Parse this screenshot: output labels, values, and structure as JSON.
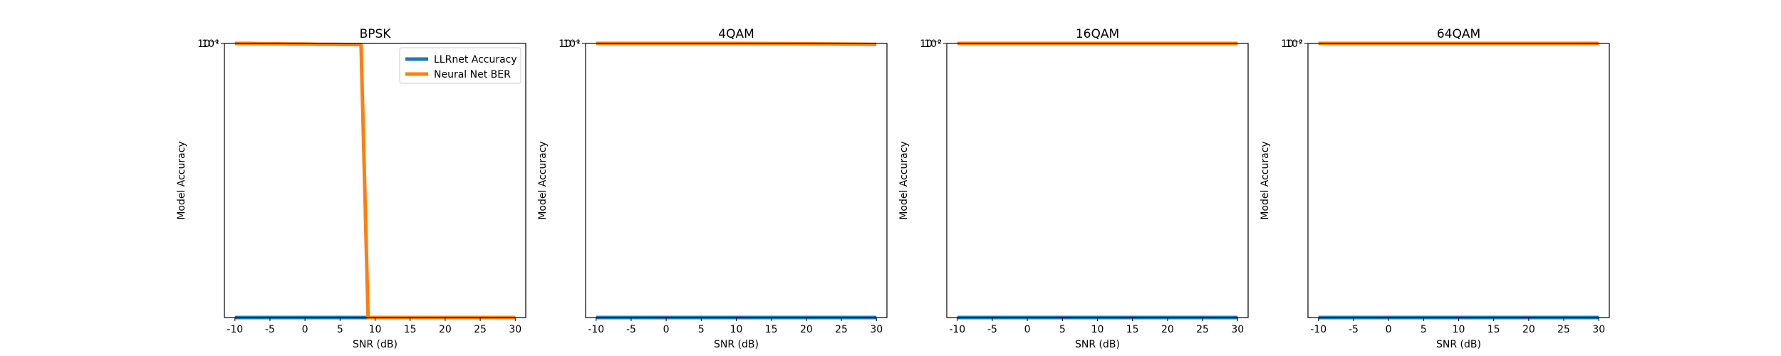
{
  "figure": {
    "charts": [
      {
        "title": "BPSK"
      },
      {
        "title": "4QAM"
      },
      {
        "title": "16QAM"
      },
      {
        "title": "64QAM"
      }
    ]
  },
  "chart_data": [
    {
      "type": "line",
      "title": "BPSK",
      "xlabel": "SNR (dB)",
      "ylabel": "Model Accuracy",
      "xlim": [
        -11.5,
        31.5
      ],
      "xticks": [
        -10,
        -5,
        0,
        5,
        10,
        15,
        20,
        25,
        30
      ],
      "ytick_labels": [
        "10°",
        "10⁻¹"
      ],
      "y_scale": "log",
      "legend_position": "top-right",
      "grid": false,
      "series": [
        {
          "name": "LLRnet Accuracy",
          "color": "#1f77b4",
          "x": [
            -10,
            -8,
            -6,
            -4,
            -2,
            0,
            2,
            4,
            6,
            8,
            9,
            10,
            12,
            14,
            16,
            18,
            20,
            22,
            24,
            26,
            28,
            30
          ],
          "y": [
            0.0,
            0.0,
            0.0,
            0.0,
            0.0,
            0.0,
            0.0,
            0.0,
            0.0,
            0.0,
            0.0,
            0.0,
            0.0,
            0.0,
            0.0,
            0.0,
            0.0,
            0.0,
            0.0,
            0.0,
            0.0,
            0.0
          ]
        },
        {
          "name": "Neural Net BER",
          "color": "#ff7f0e",
          "x": [
            -10,
            -8,
            -6,
            -4,
            -2,
            0,
            2,
            4,
            6,
            8,
            9,
            10,
            12,
            14,
            16,
            18,
            20,
            22,
            24,
            26,
            28,
            30
          ],
          "y": [
            1.0,
            1.0,
            0.999,
            0.999,
            0.998,
            0.998,
            0.997,
            0.997,
            0.996,
            0.996,
            0.0,
            0.0,
            0.0,
            0.0,
            0.0,
            0.0,
            0.0,
            0.0,
            0.0,
            0.0,
            0.0,
            0.0
          ]
        }
      ]
    },
    {
      "type": "line",
      "title": "4QAM",
      "xlabel": "SNR (dB)",
      "ylabel": "Model Accuracy",
      "xlim": [
        -11.5,
        31.5
      ],
      "xticks": [
        -10,
        -5,
        0,
        5,
        10,
        15,
        20,
        25,
        30
      ],
      "ytick_labels": [
        "10°",
        "10⁻¹"
      ],
      "y_scale": "log",
      "grid": false,
      "series": [
        {
          "name": "LLRnet Accuracy",
          "color": "#1f77b4",
          "x": [
            -10,
            0,
            10,
            20,
            30
          ],
          "y": [
            0.0,
            0.0,
            0.0,
            0.0,
            0.0
          ]
        },
        {
          "name": "Neural Net BER",
          "color": "#ff7f0e",
          "x": [
            -10,
            0,
            10,
            20,
            30
          ],
          "y": [
            1.0,
            1.0,
            1.0,
            0.999,
            0.997
          ]
        }
      ]
    },
    {
      "type": "line",
      "title": "16QAM",
      "xlabel": "SNR (dB)",
      "ylabel": "Model Accuracy",
      "xlim": [
        -11.5,
        31.5
      ],
      "xticks": [
        -10,
        -5,
        0,
        5,
        10,
        15,
        20,
        25,
        30
      ],
      "ytick_labels": [
        "10°",
        "10⁻²"
      ],
      "y_scale": "log",
      "grid": false,
      "series": [
        {
          "name": "LLRnet Accuracy",
          "color": "#1f77b4",
          "x": [
            -10,
            0,
            10,
            20,
            30
          ],
          "y": [
            0.0,
            0.0,
            0.0,
            0.0,
            0.0
          ]
        },
        {
          "name": "Neural Net BER",
          "color": "#ff7f0e",
          "x": [
            -10,
            0,
            10,
            20,
            30
          ],
          "y": [
            1.0,
            1.0,
            1.0,
            1.0,
            1.0
          ]
        }
      ]
    },
    {
      "type": "line",
      "title": "64QAM",
      "xlabel": "SNR (dB)",
      "ylabel": "Model Accuracy",
      "xlim": [
        -11.5,
        31.5
      ],
      "xticks": [
        -10,
        -5,
        0,
        5,
        10,
        15,
        20,
        25,
        30
      ],
      "ytick_labels": [
        "10°",
        "10⁻²"
      ],
      "y_scale": "log",
      "grid": false,
      "series": [
        {
          "name": "LLRnet Accuracy",
          "color": "#1f77b4",
          "x": [
            -10,
            0,
            10,
            20,
            30
          ],
          "y": [
            0.0,
            0.0,
            0.0,
            0.0,
            0.0
          ]
        },
        {
          "name": "Neural Net BER",
          "color": "#ff7f0e",
          "x": [
            -10,
            0,
            10,
            20,
            30
          ],
          "y": [
            1.0,
            1.0,
            1.0,
            1.0,
            1.0
          ]
        }
      ]
    }
  ]
}
